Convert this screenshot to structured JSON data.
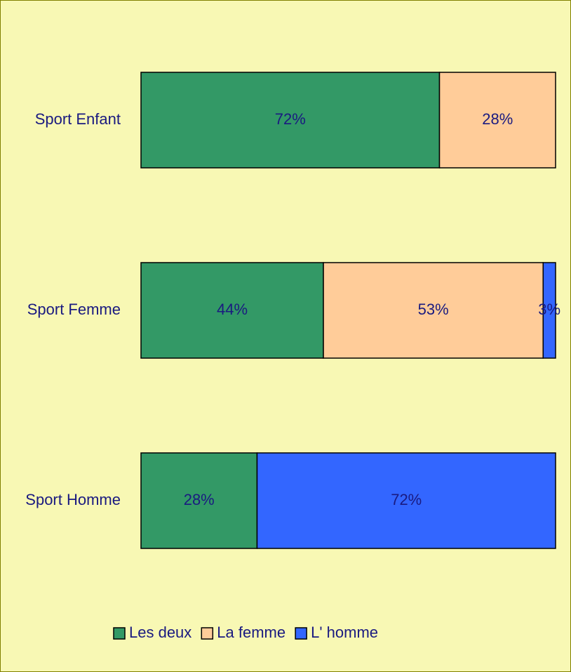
{
  "chart_data": {
    "type": "stacked-bar-100",
    "categories": [
      "Sport Enfant",
      "Sport Femme",
      "Sport Homme"
    ],
    "series": [
      {
        "name": "Les deux",
        "color": "#339966",
        "values": [
          72,
          44,
          28
        ],
        "value_labels": [
          "72%",
          "44%",
          "28%"
        ]
      },
      {
        "name": "La femme",
        "color": "#ffcc99",
        "values": [
          28,
          53,
          0
        ],
        "value_labels": [
          "28%",
          "53%",
          null
        ]
      },
      {
        "name": "L' homme",
        "color": "#3366ff",
        "values": [
          0,
          3,
          72
        ],
        "value_labels": [
          null,
          "3%",
          "72%"
        ]
      }
    ],
    "legend": "bottom"
  }
}
